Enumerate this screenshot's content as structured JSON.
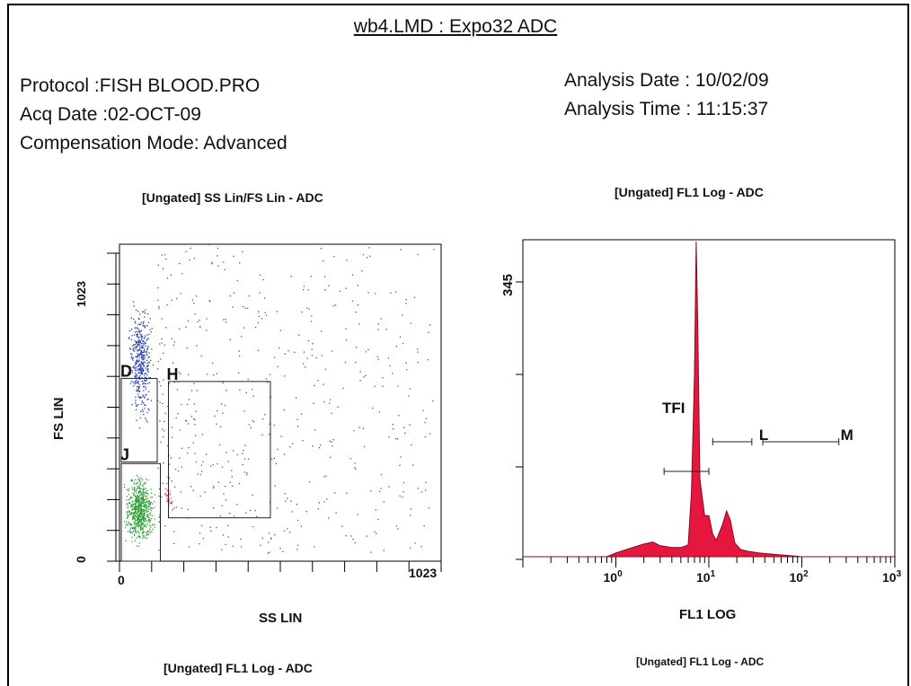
{
  "report": {
    "title": "wb4.LMD : Expo32 ADC",
    "protocol": "Protocol :FISH BLOOD.PRO",
    "acq_date": "Acq Date :02-OCT-09",
    "compensation": "Compensation Mode: Advanced",
    "analysis_date": "Analysis Date : 10/02/09",
    "analysis_time": "Analysis Time : 11:15:37",
    "footer_left": "[Ungated] FL1 Log - ADC",
    "footer_right": "[Ungated] FL1 Log - ADC"
  },
  "chart_data": [
    {
      "type": "scatter",
      "title": "[Ungated] SS Lin/FS Lin - ADC",
      "xlabel": "SS LIN",
      "ylabel": "FS LIN",
      "xlim": [
        0,
        1023
      ],
      "ylim": [
        0,
        1023
      ],
      "x_ticks": [
        "0",
        "1023"
      ],
      "y_ticks": [
        "0",
        "1023"
      ],
      "populations": [
        {
          "label": "D",
          "color": "#2b3fa8",
          "x_range": [
            20,
            110
          ],
          "y_range": [
            420,
            870
          ],
          "count": 420
        },
        {
          "label": "J",
          "color": "#2e9e3a",
          "x_range": [
            5,
            120
          ],
          "y_range": [
            30,
            300
          ],
          "count": 650
        },
        {
          "label": "H",
          "color": "#555555",
          "x_range": [
            120,
            1000
          ],
          "y_range": [
            20,
            1023
          ],
          "count": 520
        },
        {
          "label": "",
          "color": "#c0407a",
          "x_range": [
            130,
            175
          ],
          "y_range": [
            150,
            260
          ],
          "count": 25
        }
      ],
      "gates": [
        {
          "label": "D",
          "x": [
            0,
            120
          ],
          "y": [
            320,
            590
          ]
        },
        {
          "label": "J",
          "x": [
            0,
            130
          ],
          "y": [
            0,
            315
          ]
        },
        {
          "label": "H",
          "x": [
            150,
            480
          ],
          "y": [
            140,
            580
          ]
        }
      ]
    },
    {
      "type": "area",
      "title": "[Ungated] FL1 Log - ADC",
      "xlabel": "FL1 LOG",
      "ylabel": "",
      "x_scale": "log",
      "xlim": [
        0.1,
        1000
      ],
      "ylim": [
        0,
        345
      ],
      "y_ticks": [
        "345"
      ],
      "x_ticks": [
        "10^0",
        "10^1",
        "10^2",
        "10^3"
      ],
      "fill_color": "#e5173f",
      "x": [
        0.1,
        0.8,
        1.0,
        1.5,
        2.0,
        2.5,
        3.0,
        4.0,
        5.0,
        6.0,
        6.5,
        7.0,
        7.3,
        7.6,
        8.0,
        9.0,
        10.0,
        11.0,
        12.0,
        14.0,
        15.5,
        17.0,
        19.0,
        22.0,
        26.0,
        35.0,
        60.0,
        100.0,
        1000.0
      ],
      "y": [
        0,
        0,
        4,
        10,
        14,
        16,
        12,
        10,
        10,
        13,
        70,
        200,
        345,
        250,
        85,
        45,
        45,
        25,
        18,
        35,
        50,
        40,
        15,
        8,
        6,
        4,
        2,
        0,
        0
      ],
      "markers": [
        {
          "label": "TFI",
          "range": [
            3.3,
            10
          ]
        },
        {
          "label": "L",
          "range": [
            11,
            29
          ]
        },
        {
          "label": "M",
          "range": [
            38,
            250
          ]
        }
      ]
    }
  ]
}
